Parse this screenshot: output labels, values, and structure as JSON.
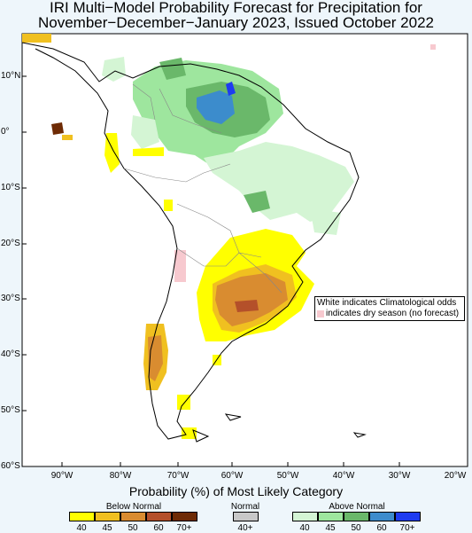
{
  "title_line1": "IRI Multi−Model Probability Forecast for Precipitation for",
  "title_line2": "November−December−January 2023, Issued October 2022",
  "y_labels": [
    "10°N",
    "0°",
    "10°S",
    "20°S",
    "30°S",
    "40°S",
    "50°S",
    "60°S"
  ],
  "x_labels": [
    "90°W",
    "80°W",
    "70°W",
    "60°W",
    "50°W",
    "40°W",
    "30°W",
    "20°W"
  ],
  "note": {
    "line1": "White indicates Climatological odds",
    "line2": "indicates dry season (no forecast)"
  },
  "legend": {
    "title": "Probability (%) of Most Likely Category",
    "below_title": "Below Normal",
    "normal_title": "Normal",
    "above_title": "Above Normal",
    "below_colors": [
      "#ffff00",
      "#f0c020",
      "#d98c30",
      "#b4502a",
      "#6e2b05"
    ],
    "below_labels": [
      "40",
      "45",
      "50",
      "60",
      "70+"
    ],
    "normal_color": "#c8c8c8",
    "normal_label": "40+",
    "above_colors": [
      "#d4f5d4",
      "#9ee69e",
      "#6ab86a",
      "#3c8ccc",
      "#1e3cf0"
    ],
    "above_labels": [
      "40",
      "45",
      "50",
      "60",
      "70+"
    ]
  },
  "colors": {
    "background": "#eef6fb",
    "map_frame": "#ffffff",
    "dry_season": "#f7c9cf"
  }
}
